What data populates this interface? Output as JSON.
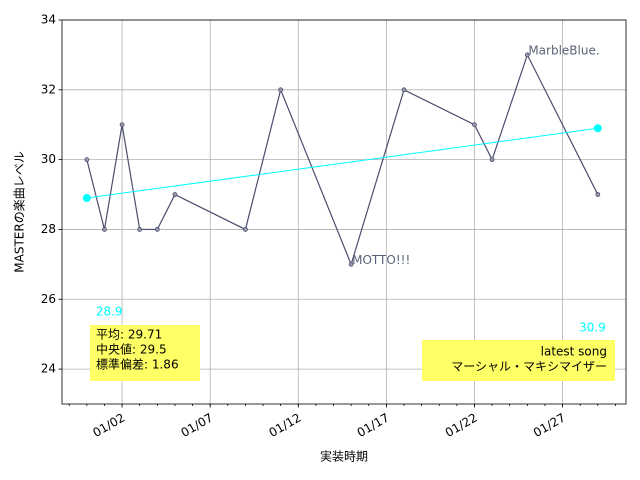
{
  "chart_data": {
    "type": "line",
    "xlabel": "実装時期",
    "ylabel": "MASTERの楽曲レベル",
    "x": [
      "12/31",
      "01/01",
      "01/02",
      "01/03",
      "01/04",
      "01/05",
      "01/09",
      "01/11",
      "01/15",
      "01/18",
      "01/22",
      "01/23",
      "01/25",
      "01/29"
    ],
    "series": [
      {
        "name": "MASTER",
        "color": "#4a4e6e",
        "values": [
          30,
          28,
          31,
          28,
          28,
          29,
          28,
          32,
          27,
          32,
          31,
          30,
          33,
          29
        ]
      },
      {
        "name": "trend",
        "color": "#00ffff",
        "x": [
          "12/31",
          "01/29"
        ],
        "values": [
          28.9,
          30.9
        ]
      }
    ],
    "annotations": [
      {
        "text": "MarbleBlue.",
        "x": "01/25",
        "y": 33
      },
      {
        "text": "MOTTO!!!",
        "x": "01/15",
        "y": 27
      }
    ],
    "stats_box": [
      "平均: 29.71",
      "中央値: 29.5",
      "標準偏差:  1.86"
    ],
    "latest_box": [
      "latest song",
      "マーシャル・マキシマイザー"
    ],
    "xlim": [
      "12/30",
      "01/30"
    ],
    "xticks": [
      "01/02",
      "01/07",
      "01/12",
      "01/17",
      "01/22",
      "01/27"
    ],
    "ylim": [
      23,
      34
    ],
    "yticks": [
      24,
      26,
      28,
      30,
      32,
      34
    ],
    "grid": true
  }
}
